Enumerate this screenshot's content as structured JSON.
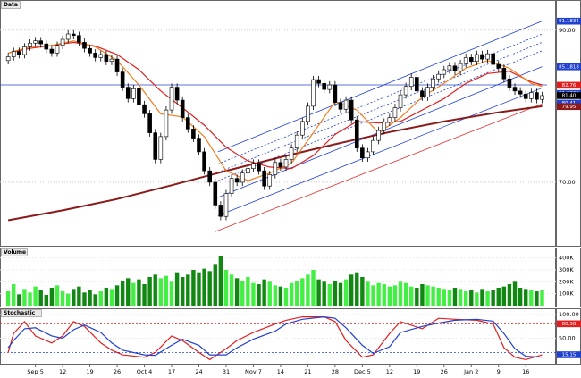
{
  "chart_data": [
    {
      "type": "candlestick",
      "title": "Data",
      "xlim": [
        -1.5,
        98.9
      ],
      "ylim": [
        62,
        93.5
      ],
      "yticks": [
        {
          "value": 90,
          "label": "90.00"
        },
        {
          "value": 70,
          "label": "70.00"
        }
      ],
      "grid": true,
      "up_color": "#ffffff",
      "down_color": "#000000",
      "open": [
        86.0,
        86.5,
        87.2,
        86.8,
        87.8,
        88.3,
        88.6,
        88.2,
        87.5,
        87.0,
        88.0,
        88.8,
        89.5,
        89.3,
        88.4,
        87.6,
        87.0,
        86.4,
        86.8,
        85.9,
        86.2,
        84.5,
        82.5,
        81.0,
        82.3,
        80.2,
        79.0,
        76.5,
        73.0,
        76.0,
        79.5,
        82.5,
        80.8,
        78.5,
        77.0,
        75.8,
        74.0,
        71.5,
        70.0,
        67.0,
        65.5,
        68.5,
        70.5,
        70.0,
        71.2,
        71.8,
        72.5,
        71.5,
        69.5,
        71.0,
        72.6,
        72.0,
        73.0,
        74.5,
        76.2,
        78.0,
        80.0,
        83.5,
        83.0,
        82.2,
        82.8,
        80.5,
        79.6,
        80.8,
        78.2,
        74.5,
        73.2,
        74.0,
        75.5,
        76.8,
        77.9,
        78.5,
        79.8,
        81.5,
        82.6,
        83.8,
        82.0,
        81.2,
        82.5,
        83.6,
        84.2,
        84.8,
        85.3,
        84.6,
        85.6,
        86.4,
        85.9,
        86.8,
        86.2,
        86.9,
        85.5,
        85.0,
        83.6,
        82.5,
        82.0,
        81.6,
        81.0,
        81.8,
        80.9
      ],
      "high": [
        87.0,
        87.7,
        87.7,
        88.3,
        88.8,
        89.1,
        89.1,
        88.7,
        88.0,
        88.5,
        89.3,
        90.0,
        90.0,
        89.8,
        88.9,
        88.1,
        87.5,
        87.3,
        87.3,
        86.7,
        86.7,
        85.0,
        83.0,
        82.8,
        82.8,
        80.7,
        79.5,
        77.0,
        76.5,
        80.0,
        83.0,
        83.0,
        81.3,
        79.0,
        77.5,
        76.3,
        74.5,
        72.0,
        70.5,
        67.5,
        69.0,
        71.0,
        71.0,
        71.7,
        72.3,
        73.0,
        73.0,
        72.0,
        71.5,
        73.1,
        73.1,
        73.5,
        75.0,
        76.7,
        78.5,
        80.5,
        84.0,
        84.0,
        83.5,
        83.3,
        83.3,
        81.0,
        81.3,
        81.3,
        78.7,
        75.0,
        74.5,
        76.0,
        77.3,
        78.4,
        79.0,
        80.3,
        82.0,
        83.1,
        84.3,
        84.3,
        82.5,
        83.0,
        84.1,
        84.7,
        85.3,
        85.8,
        85.8,
        86.1,
        86.9,
        86.9,
        87.3,
        87.3,
        87.4,
        87.4,
        86.0,
        85.5,
        84.1,
        83.0,
        82.5,
        82.1,
        82.3,
        82.3,
        81.9
      ],
      "low": [
        85.5,
        86.0,
        86.3,
        86.3,
        87.3,
        87.8,
        87.7,
        87.0,
        86.5,
        86.5,
        87.5,
        88.3,
        88.8,
        87.9,
        87.1,
        86.5,
        85.9,
        85.9,
        85.4,
        85.4,
        84.0,
        82.0,
        80.5,
        80.5,
        79.7,
        78.5,
        76.0,
        72.5,
        72.5,
        75.5,
        79.0,
        80.3,
        78.0,
        76.5,
        75.3,
        73.5,
        71.0,
        69.5,
        66.5,
        65.0,
        65.0,
        68.0,
        69.5,
        69.5,
        70.7,
        71.3,
        71.0,
        69.0,
        69.0,
        70.5,
        71.5,
        71.5,
        72.5,
        74.0,
        75.7,
        77.5,
        79.5,
        82.5,
        81.7,
        81.7,
        80.0,
        79.1,
        79.1,
        77.7,
        74.0,
        72.7,
        72.7,
        73.5,
        75.0,
        76.3,
        77.4,
        78.0,
        79.3,
        81.0,
        82.1,
        81.5,
        80.7,
        80.7,
        82.0,
        83.1,
        83.7,
        84.3,
        84.1,
        84.1,
        85.1,
        85.4,
        85.4,
        85.7,
        85.7,
        85.0,
        84.5,
        83.1,
        82.0,
        81.5,
        81.1,
        80.5,
        80.5,
        80.4,
        80.4
      ],
      "close": [
        86.5,
        87.2,
        86.8,
        87.8,
        88.3,
        88.6,
        88.2,
        87.5,
        87.0,
        88.0,
        88.8,
        89.5,
        89.3,
        88.4,
        87.6,
        87.0,
        86.4,
        86.8,
        85.9,
        86.2,
        84.5,
        82.5,
        81.0,
        82.3,
        80.2,
        79.0,
        76.5,
        73.0,
        76.0,
        79.5,
        82.5,
        80.8,
        78.5,
        77.0,
        75.8,
        74.0,
        71.5,
        70.0,
        67.0,
        65.5,
        68.5,
        70.5,
        70.0,
        71.2,
        71.8,
        72.5,
        71.5,
        69.5,
        71.0,
        72.6,
        72.0,
        73.0,
        74.5,
        76.2,
        78.0,
        80.0,
        83.5,
        83.0,
        82.2,
        82.8,
        80.5,
        79.6,
        80.8,
        78.2,
        74.5,
        73.2,
        74.0,
        75.5,
        76.8,
        77.9,
        78.5,
        79.8,
        81.5,
        82.6,
        83.8,
        82.0,
        81.2,
        82.5,
        83.6,
        84.2,
        84.8,
        85.3,
        84.6,
        85.6,
        86.4,
        85.9,
        86.8,
        86.2,
        86.9,
        85.5,
        85.0,
        83.6,
        82.5,
        82.0,
        81.6,
        81.0,
        81.8,
        80.9,
        81.4
      ],
      "series": [
        {
          "color": "#8b1a1a",
          "x": [
            0,
            10,
            20,
            30,
            40,
            50,
            60,
            70,
            80,
            90,
            98
          ],
          "values": [
            65.0,
            66.3,
            67.8,
            69.6,
            71.5,
            73.3,
            75.0,
            76.6,
            78.0,
            79.2,
            80.0
          ]
        },
        {
          "color": "#e02020",
          "x": [
            0,
            4,
            8,
            12,
            16,
            20,
            24,
            28,
            32,
            36,
            40,
            44,
            48,
            52,
            56,
            60,
            64,
            68,
            72,
            76,
            80,
            84,
            88,
            92,
            96,
            98
          ],
          "values": [
            87.0,
            87.6,
            88.0,
            88.4,
            87.9,
            86.8,
            84.8,
            82.0,
            79.8,
            77.5,
            74.6,
            72.8,
            72.0,
            71.8,
            73.5,
            76.3,
            78.0,
            77.8,
            78.0,
            79.5,
            81.0,
            83.0,
            84.3,
            84.6,
            83.2,
            82.8
          ]
        },
        {
          "color": "#f08020",
          "x": [
            0,
            4,
            8,
            12,
            16,
            20,
            24,
            28,
            32,
            36,
            40,
            44,
            48,
            52,
            56,
            60,
            64,
            68,
            72,
            76,
            80,
            84,
            88,
            92,
            96,
            98
          ],
          "values": [
            87.0,
            87.8,
            88.0,
            88.6,
            87.8,
            86.0,
            82.8,
            79.0,
            78.6,
            76.0,
            71.5,
            70.2,
            71.2,
            72.5,
            76.5,
            80.6,
            79.5,
            76.5,
            78.5,
            81.2,
            83.0,
            85.0,
            86.0,
            85.0,
            83.0,
            82.6
          ]
        }
      ],
      "lines": [
        {
          "color": "#2040d0",
          "dashed": false,
          "x": [
            38.5,
            98
          ],
          "values": [
            74.0,
            91.2
          ]
        },
        {
          "color": "#2040d0",
          "dashed": true,
          "x": [
            38.5,
            98
          ],
          "values": [
            72.4,
            89.5
          ]
        },
        {
          "color": "#2040d0",
          "dashed": true,
          "x": [
            38.5,
            98
          ],
          "values": [
            71.3,
            88.4
          ]
        },
        {
          "color": "#2040d0",
          "dashed": true,
          "x": [
            38.5,
            98
          ],
          "values": [
            70.2,
            87.3
          ]
        },
        {
          "color": "#2040d0",
          "dashed": false,
          "x": [
            38.5,
            98
          ],
          "values": [
            68.0,
            85.2
          ]
        },
        {
          "color": "#2040d0",
          "dashed": false,
          "x": [
            38.5,
            98
          ],
          "values": [
            65.6,
            82.4
          ]
        },
        {
          "color": "#2040d0",
          "dashed": false,
          "x": [
            -1.5,
            98.9
          ],
          "values": [
            82.8,
            82.8
          ]
        },
        {
          "color": "#e03030",
          "dashed": false,
          "x": [
            38,
            98
          ],
          "values": [
            63.5,
            80.3
          ]
        }
      ],
      "markers": [
        {
          "value": 91.1834,
          "label": "91.1834",
          "color": "#2040d0"
        },
        {
          "value": 85.1818,
          "label": "85.1818",
          "color": "#2040d0"
        },
        {
          "value": 82.76,
          "label": "82.76",
          "color": "#e02020"
        },
        {
          "value": 81.6702,
          "label": "81.6702",
          "color": "#2040d0"
        },
        {
          "value": 81.4,
          "label": "81.40",
          "color": "#000000"
        },
        {
          "value": 80.41,
          "label": "80.41",
          "color": "#2040d0"
        },
        {
          "value": 79.95,
          "label": "79.95",
          "color": "#8b1a1a"
        }
      ]
    },
    {
      "type": "bar",
      "title": "Volume",
      "xlim": [
        -1.5,
        98.9
      ],
      "ylim": [
        0,
        450000
      ],
      "yticks": [
        {
          "value": 400000,
          "label": "400K"
        },
        {
          "value": 300000,
          "label": "300K"
        },
        {
          "value": 200000,
          "label": "200K"
        },
        {
          "value": 100000,
          "label": "100K"
        }
      ],
      "up_color": "#44ee44",
      "down_color": "#118811",
      "values": [
        120000,
        180000,
        95000,
        140000,
        110000,
        160000,
        130000,
        90000,
        150000,
        170000,
        120000,
        100000,
        140000,
        160000,
        110000,
        130000,
        95000,
        120000,
        150000,
        140000,
        170000,
        210000,
        230000,
        190000,
        220000,
        180000,
        240000,
        260000,
        230000,
        250000,
        200000,
        280000,
        240000,
        260000,
        300000,
        280000,
        310000,
        290000,
        350000,
        420000,
        300000,
        260000,
        230000,
        210000,
        240000,
        190000,
        180000,
        220000,
        200000,
        170000,
        160000,
        150000,
        190000,
        210000,
        230000,
        260000,
        300000,
        220000,
        200000,
        180000,
        210000,
        190000,
        220000,
        260000,
        280000,
        240000,
        200000,
        170000,
        190000,
        180000,
        160000,
        170000,
        200000,
        190000,
        160000,
        150000,
        180000,
        170000,
        160000,
        150000,
        140000,
        130000,
        150000,
        140000,
        120000,
        130000,
        110000,
        140000,
        120000,
        130000,
        150000,
        160000,
        180000,
        200000,
        150000,
        140000,
        130000,
        120000,
        130000
      ]
    },
    {
      "type": "line",
      "title": "Stochastic",
      "xlim": [
        -1.5,
        98.9
      ],
      "ylim": [
        0,
        100
      ],
      "yticks": [
        {
          "value": 100,
          "label": "100.00"
        },
        {
          "value": 50,
          "label": "50.00"
        }
      ],
      "levels": [
        {
          "value": 80,
          "color": "#e02020"
        },
        {
          "value": 20,
          "color": "#2040d0"
        }
      ],
      "markers": [
        {
          "value": 80.5,
          "label": "80.50",
          "color": "#e02020"
        },
        {
          "value": 15.15,
          "label": "15.15",
          "color": "#2040d0"
        }
      ],
      "series": [
        {
          "color": "#e02020",
          "x": [
            0,
            1,
            3,
            5,
            8,
            10,
            12,
            14,
            17,
            19,
            21,
            25,
            27,
            30,
            32,
            35,
            37,
            40,
            42,
            45,
            49,
            51,
            54,
            58,
            60,
            62,
            65,
            67,
            70,
            72,
            76,
            79,
            82,
            86,
            89,
            91,
            93,
            95,
            98
          ],
          "values": [
            20,
            60,
            85,
            55,
            40,
            55,
            85,
            75,
            40,
            25,
            15,
            10,
            20,
            55,
            45,
            20,
            5,
            28,
            45,
            62,
            80,
            88,
            95,
            95,
            85,
            45,
            10,
            15,
            60,
            85,
            70,
            92,
            90,
            88,
            80,
            30,
            10,
            5,
            15
          ]
        },
        {
          "color": "#2040d0",
          "x": [
            0,
            1,
            3,
            5,
            8,
            10,
            12,
            14,
            17,
            19,
            21,
            25,
            27,
            30,
            32,
            35,
            37,
            40,
            42,
            45,
            49,
            51,
            54,
            58,
            60,
            62,
            65,
            67,
            70,
            72,
            76,
            79,
            82,
            86,
            89,
            91,
            93,
            95,
            98
          ],
          "values": [
            30,
            45,
            70,
            72,
            55,
            50,
            68,
            78,
            62,
            40,
            25,
            15,
            14,
            35,
            48,
            35,
            15,
            15,
            30,
            48,
            65,
            80,
            90,
            95,
            92,
            72,
            35,
            18,
            32,
            62,
            75,
            82,
            88,
            90,
            86,
            60,
            28,
            12,
            10
          ]
        }
      ],
      "xticks": [
        {
          "value": 5,
          "label": "Sep 5"
        },
        {
          "value": 10,
          "label": "12"
        },
        {
          "value": 15,
          "label": "19"
        },
        {
          "value": 20,
          "label": "26"
        },
        {
          "value": 25,
          "label": "Oct 4"
        },
        {
          "value": 30,
          "label": "17"
        },
        {
          "value": 35,
          "label": "24"
        },
        {
          "value": 40,
          "label": "31"
        },
        {
          "value": 45,
          "label": "Nov 7"
        },
        {
          "value": 50,
          "label": "14"
        },
        {
          "value": 55,
          "label": "21"
        },
        {
          "value": 60,
          "label": "28"
        },
        {
          "value": 65,
          "label": "Dec 5"
        },
        {
          "value": 70,
          "label": "12"
        },
        {
          "value": 75,
          "label": "19"
        },
        {
          "value": 80,
          "label": "26"
        },
        {
          "value": 85,
          "label": "Jan 2"
        },
        {
          "value": 90,
          "label": "9"
        },
        {
          "value": 95,
          "label": "16"
        }
      ]
    }
  ]
}
